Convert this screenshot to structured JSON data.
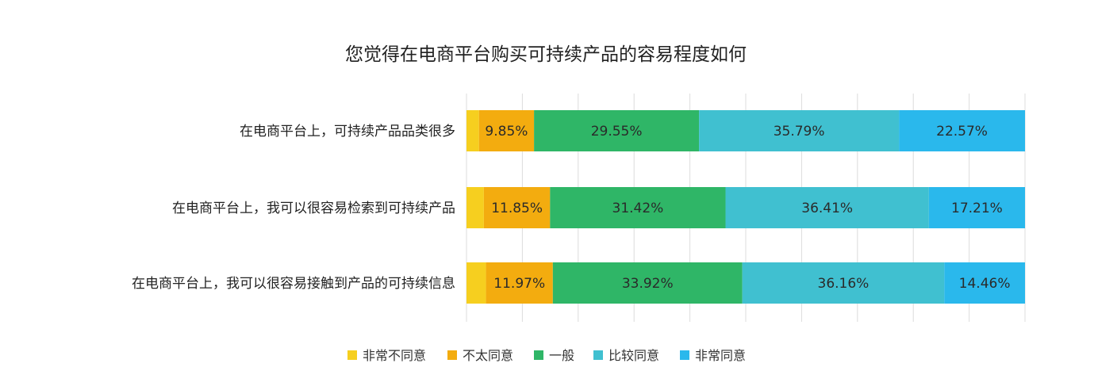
{
  "chart_data": {
    "type": "bar",
    "orientation": "horizontal",
    "stacked": true,
    "title": "您觉得在电商平台购买可持续产品的容易程度如何",
    "categories": [
      "在电商平台上，可持续产品品类很多",
      "在电商平台上，我可以很容易检索到可持续产品",
      "在电商平台上，我可以很容易接触到产品的可持续信息"
    ],
    "series": [
      {
        "name": "非常不同意",
        "color": "#f6cf1f",
        "values": [
          2.24,
          3.11,
          3.49
        ],
        "labels": [
          "",
          "",
          ""
        ]
      },
      {
        "name": "不太同意",
        "color": "#f3ac0f",
        "values": [
          9.85,
          11.85,
          11.97
        ],
        "labels": [
          "9.85%",
          "11.85%",
          "11.97%"
        ]
      },
      {
        "name": "一般",
        "color": "#2fb667",
        "values": [
          29.55,
          31.42,
          33.92
        ],
        "labels": [
          "29.55%",
          "31.42%",
          "33.92%"
        ]
      },
      {
        "name": "比较同意",
        "color": "#40c0d0",
        "values": [
          35.79,
          36.41,
          36.16
        ],
        "labels": [
          "35.79%",
          "36.41%",
          "36.16%"
        ]
      },
      {
        "name": "非常同意",
        "color": "#2ab8ec",
        "values": [
          22.57,
          17.21,
          14.46
        ],
        "labels": [
          "22.57%",
          "17.21%",
          "14.46%"
        ]
      }
    ],
    "xlim": [
      0,
      100
    ],
    "grid": true,
    "legend_position": "bottom"
  }
}
